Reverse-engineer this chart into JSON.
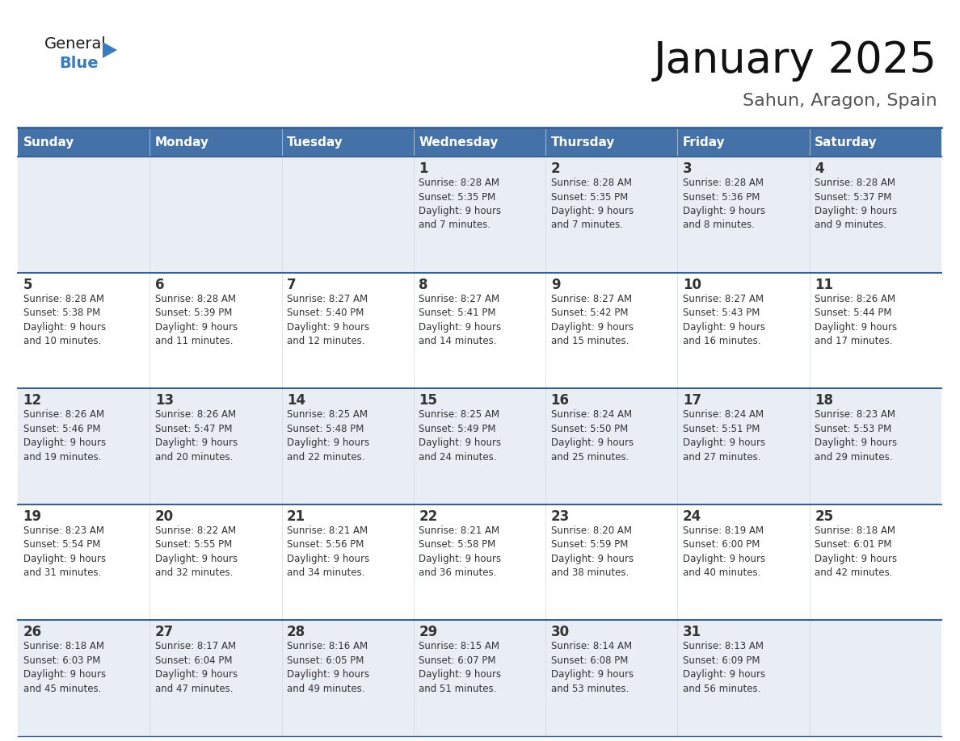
{
  "title": "January 2025",
  "subtitle": "Sahun, Aragon, Spain",
  "header_bg": "#4472a8",
  "header_text_color": "#ffffff",
  "row_bg_light": "#e8eef4",
  "row_bg_white": "#ffffff",
  "border_color": "#3a6090",
  "text_color": "#333333",
  "day_headers": [
    "Sunday",
    "Monday",
    "Tuesday",
    "Wednesday",
    "Thursday",
    "Friday",
    "Saturday"
  ],
  "calendar_data": [
    [
      "",
      "",
      "",
      "1\nSunrise: 8:28 AM\nSunset: 5:35 PM\nDaylight: 9 hours\nand 7 minutes.",
      "2\nSunrise: 8:28 AM\nSunset: 5:35 PM\nDaylight: 9 hours\nand 7 minutes.",
      "3\nSunrise: 8:28 AM\nSunset: 5:36 PM\nDaylight: 9 hours\nand 8 minutes.",
      "4\nSunrise: 8:28 AM\nSunset: 5:37 PM\nDaylight: 9 hours\nand 9 minutes."
    ],
    [
      "5\nSunrise: 8:28 AM\nSunset: 5:38 PM\nDaylight: 9 hours\nand 10 minutes.",
      "6\nSunrise: 8:28 AM\nSunset: 5:39 PM\nDaylight: 9 hours\nand 11 minutes.",
      "7\nSunrise: 8:27 AM\nSunset: 5:40 PM\nDaylight: 9 hours\nand 12 minutes.",
      "8\nSunrise: 8:27 AM\nSunset: 5:41 PM\nDaylight: 9 hours\nand 14 minutes.",
      "9\nSunrise: 8:27 AM\nSunset: 5:42 PM\nDaylight: 9 hours\nand 15 minutes.",
      "10\nSunrise: 8:27 AM\nSunset: 5:43 PM\nDaylight: 9 hours\nand 16 minutes.",
      "11\nSunrise: 8:26 AM\nSunset: 5:44 PM\nDaylight: 9 hours\nand 17 minutes."
    ],
    [
      "12\nSunrise: 8:26 AM\nSunset: 5:46 PM\nDaylight: 9 hours\nand 19 minutes.",
      "13\nSunrise: 8:26 AM\nSunset: 5:47 PM\nDaylight: 9 hours\nand 20 minutes.",
      "14\nSunrise: 8:25 AM\nSunset: 5:48 PM\nDaylight: 9 hours\nand 22 minutes.",
      "15\nSunrise: 8:25 AM\nSunset: 5:49 PM\nDaylight: 9 hours\nand 24 minutes.",
      "16\nSunrise: 8:24 AM\nSunset: 5:50 PM\nDaylight: 9 hours\nand 25 minutes.",
      "17\nSunrise: 8:24 AM\nSunset: 5:51 PM\nDaylight: 9 hours\nand 27 minutes.",
      "18\nSunrise: 8:23 AM\nSunset: 5:53 PM\nDaylight: 9 hours\nand 29 minutes."
    ],
    [
      "19\nSunrise: 8:23 AM\nSunset: 5:54 PM\nDaylight: 9 hours\nand 31 minutes.",
      "20\nSunrise: 8:22 AM\nSunset: 5:55 PM\nDaylight: 9 hours\nand 32 minutes.",
      "21\nSunrise: 8:21 AM\nSunset: 5:56 PM\nDaylight: 9 hours\nand 34 minutes.",
      "22\nSunrise: 8:21 AM\nSunset: 5:58 PM\nDaylight: 9 hours\nand 36 minutes.",
      "23\nSunrise: 8:20 AM\nSunset: 5:59 PM\nDaylight: 9 hours\nand 38 minutes.",
      "24\nSunrise: 8:19 AM\nSunset: 6:00 PM\nDaylight: 9 hours\nand 40 minutes.",
      "25\nSunrise: 8:18 AM\nSunset: 6:01 PM\nDaylight: 9 hours\nand 42 minutes."
    ],
    [
      "26\nSunrise: 8:18 AM\nSunset: 6:03 PM\nDaylight: 9 hours\nand 45 minutes.",
      "27\nSunrise: 8:17 AM\nSunset: 6:04 PM\nDaylight: 9 hours\nand 47 minutes.",
      "28\nSunrise: 8:16 AM\nSunset: 6:05 PM\nDaylight: 9 hours\nand 49 minutes.",
      "29\nSunrise: 8:15 AM\nSunset: 6:07 PM\nDaylight: 9 hours\nand 51 minutes.",
      "30\nSunrise: 8:14 AM\nSunset: 6:08 PM\nDaylight: 9 hours\nand 53 minutes.",
      "31\nSunrise: 8:13 AM\nSunset: 6:09 PM\nDaylight: 9 hours\nand 56 minutes.",
      ""
    ]
  ],
  "logo_color_general": "#1a1a1a",
  "logo_color_blue": "#3a7bbf",
  "logo_triangle_color": "#3a7bbf",
  "title_fontsize": 38,
  "subtitle_fontsize": 16,
  "header_fontsize": 11,
  "day_num_fontsize": 12,
  "cell_text_fontsize": 8.5
}
